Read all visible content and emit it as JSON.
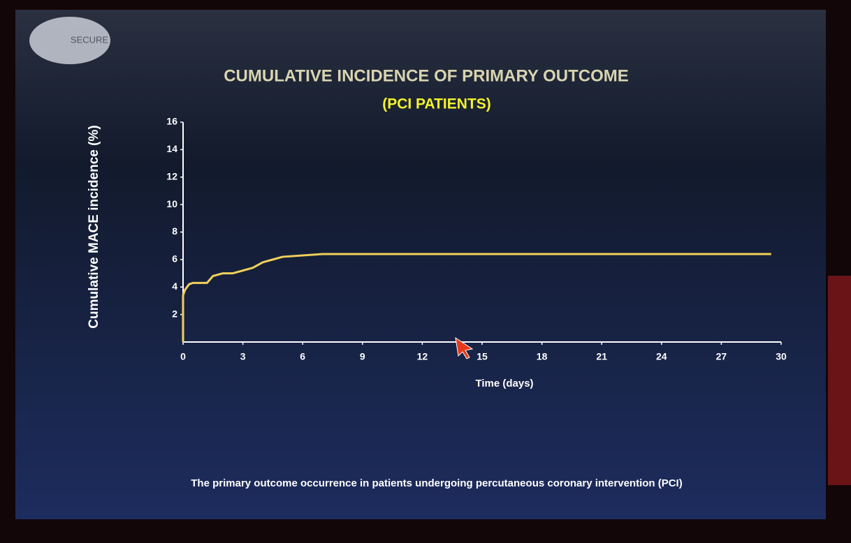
{
  "logo": "SECURE",
  "chart_data": {
    "type": "line",
    "title": "CUMULATIVE INCIDENCE OF PRIMARY OUTCOME",
    "subtitle": "(PCI PATIENTS)",
    "y_label": "Cumulative MACE incidence (%)",
    "x_label": "Time (days)",
    "caption": "The primary outcome occurrence in patients undergoing percutaneous coronary intervention (PCI)",
    "x": [
      0,
      0,
      0.1,
      0.3,
      0.5,
      1.2,
      1.5,
      2.0,
      2.5,
      3.0,
      3.5,
      4.0,
      4.5,
      5.0,
      7.0,
      9.0,
      12,
      15,
      18,
      21,
      24,
      27,
      29.5
    ],
    "series": [
      {
        "name": "PCI patients",
        "color": "#f2cf5a",
        "values": [
          0,
          3.4,
          3.8,
          4.2,
          4.3,
          4.3,
          4.8,
          5.0,
          5.0,
          5.2,
          5.4,
          5.8,
          6.0,
          6.2,
          6.4,
          6.4,
          6.4,
          6.4,
          6.4,
          6.4,
          6.4,
          6.4,
          6.4
        ]
      }
    ],
    "xlim": [
      0,
      30
    ],
    "xticks": [
      0,
      3,
      6,
      9,
      12,
      15,
      18,
      21,
      24,
      27,
      30
    ],
    "ylim": [
      0,
      16
    ],
    "yticks": [
      2,
      4,
      6,
      8,
      10,
      12,
      14,
      16
    ]
  }
}
